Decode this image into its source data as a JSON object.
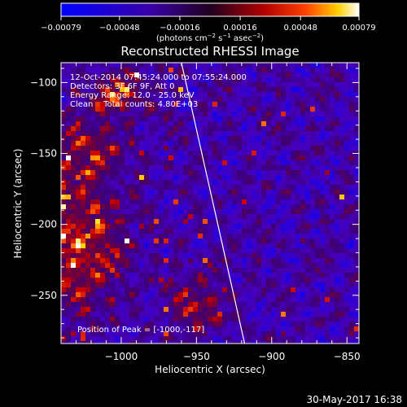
{
  "chart_data": {
    "type": "heatmap",
    "title": "Reconstructed RHESSI Image",
    "xlabel": "Heliocentric X (arcsec)",
    "ylabel": "Heliocentric Y (arcsec)",
    "x_range": [
      -1040,
      -842
    ],
    "y_range": [
      -284,
      -86
    ],
    "x_ticks": [
      -1000,
      -950,
      -900,
      -850
    ],
    "x_tick_labels": [
      "−1000",
      "−950",
      "−900",
      "−850"
    ],
    "y_ticks": [
      -100,
      -150,
      -200,
      -250
    ],
    "y_tick_labels": [
      "−100",
      "−150",
      "−200",
      "−250"
    ],
    "colorbar": {
      "range": [
        -0.00079,
        0.00079
      ],
      "ticks": [
        -0.00079,
        -0.00048,
        -0.00016,
        0.00016,
        0.00048,
        0.00079
      ],
      "tick_labels": [
        "−0.00079",
        "−0.00048",
        "−0.00016",
        "0.00016",
        "0.00048",
        "0.00079"
      ],
      "unit_label": "(photons cm",
      "unit_exp1": "−2",
      "unit_mid": " s",
      "unit_exp2": "−1",
      "unit_mid2": " asec",
      "unit_exp3": "−2",
      "unit_end": ")"
    },
    "annotations": [
      "12-Oct-2014 07:45:24.000 to 07:55:24.000",
      "Detectors: 3F 6F 9F, Att 0",
      "Energy Range: 12.0 - 25.0 keV",
      "Clean    Total counts: 4.80E+03"
    ],
    "peak_label": "Position of Peak = [-1000,-117]",
    "peak_position": [
      -1000,
      -117
    ],
    "limb": [
      [
        -960,
        -86
      ],
      [
        -918,
        -284
      ]
    ],
    "colors": {
      "axis": "#ffffff",
      "background": "#000000",
      "limb": "#ffffff"
    }
  },
  "footer": {
    "timestamp": "30-May-2017 16:38"
  }
}
